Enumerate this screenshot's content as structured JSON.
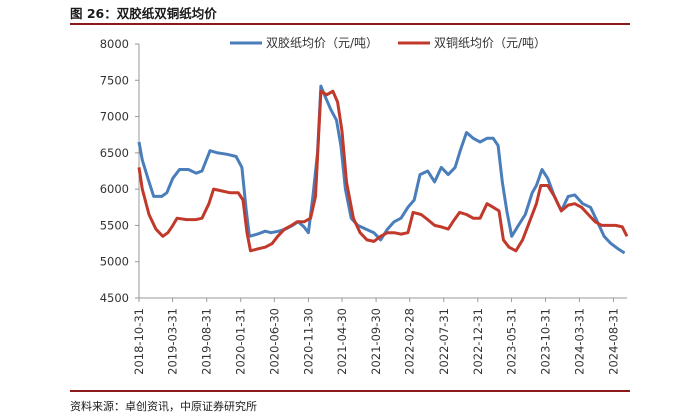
{
  "header": {
    "title": "图 26：双胶纸双铜纸均价"
  },
  "footer": {
    "source": "资料来源：卓创资讯，中原证券研究所"
  },
  "chart_data": {
    "type": "line",
    "title": "",
    "xlabel": "",
    "ylabel": "",
    "ylim": [
      4500,
      8000
    ],
    "yticks": [
      4500,
      5000,
      5500,
      6000,
      6500,
      7000,
      7500,
      8000
    ],
    "xlim": [
      "2018-10-31",
      "2024-10-31"
    ],
    "xticks": [
      "2018-10-31",
      "2019-03-31",
      "2019-08-31",
      "2020-01-31",
      "2020-06-30",
      "2020-11-30",
      "2021-04-30",
      "2021-09-30",
      "2022-02-28",
      "2022-07-31",
      "2022-12-31",
      "2023-05-31",
      "2023-10-31",
      "2024-03-31",
      "2024-08-31"
    ],
    "grid": false,
    "legend": "top",
    "series": [
      {
        "name": "双胶纸均价（元/吨）",
        "color": "#4a7ebb",
        "points": [
          [
            "2018-10-31",
            6650
          ],
          [
            "2018-11-15",
            6400
          ],
          [
            "2018-12-10",
            6150
          ],
          [
            "2019-01-05",
            5900
          ],
          [
            "2019-02-10",
            5900
          ],
          [
            "2019-03-05",
            5950
          ],
          [
            "2019-04-01",
            6150
          ],
          [
            "2019-05-01",
            6270
          ],
          [
            "2019-06-10",
            6270
          ],
          [
            "2019-07-15",
            6220
          ],
          [
            "2019-08-10",
            6250
          ],
          [
            "2019-09-15",
            6530
          ],
          [
            "2019-10-20",
            6500
          ],
          [
            "2019-12-01",
            6480
          ],
          [
            "2020-01-10",
            6450
          ],
          [
            "2020-02-05",
            6300
          ],
          [
            "2020-02-25",
            5700
          ],
          [
            "2020-03-10",
            5350
          ],
          [
            "2020-04-15",
            5380
          ],
          [
            "2020-05-20",
            5420
          ],
          [
            "2020-06-15",
            5400
          ],
          [
            "2020-07-20",
            5420
          ],
          [
            "2020-08-20",
            5450
          ],
          [
            "2020-09-20",
            5500
          ],
          [
            "2020-10-15",
            5550
          ],
          [
            "2020-11-10",
            5480
          ],
          [
            "2020-11-30",
            5400
          ],
          [
            "2020-12-20",
            5900
          ],
          [
            "2021-01-10",
            6500
          ],
          [
            "2021-01-25",
            7420
          ],
          [
            "2021-02-10",
            7300
          ],
          [
            "2021-03-10",
            7100
          ],
          [
            "2021-04-05",
            6950
          ],
          [
            "2021-04-25",
            6600
          ],
          [
            "2021-05-15",
            6000
          ],
          [
            "2021-06-10",
            5600
          ],
          [
            "2021-07-10",
            5500
          ],
          [
            "2021-08-15",
            5450
          ],
          [
            "2021-09-20",
            5400
          ],
          [
            "2021-10-20",
            5300
          ],
          [
            "2021-11-20",
            5450
          ],
          [
            "2021-12-20",
            5550
          ],
          [
            "2022-01-20",
            5600
          ],
          [
            "2022-02-20",
            5750
          ],
          [
            "2022-03-20",
            5850
          ],
          [
            "2022-04-15",
            6200
          ],
          [
            "2022-05-20",
            6250
          ],
          [
            "2022-06-20",
            6100
          ],
          [
            "2022-07-20",
            6300
          ],
          [
            "2022-08-20",
            6200
          ],
          [
            "2022-09-20",
            6300
          ],
          [
            "2022-10-15",
            6550
          ],
          [
            "2022-11-10",
            6780
          ],
          [
            "2022-12-10",
            6700
          ],
          [
            "2023-01-10",
            6650
          ],
          [
            "2023-02-10",
            6700
          ],
          [
            "2023-03-10",
            6700
          ],
          [
            "2023-04-01",
            6600
          ],
          [
            "2023-04-20",
            6100
          ],
          [
            "2023-05-10",
            5700
          ],
          [
            "2023-06-01",
            5350
          ],
          [
            "2023-07-01",
            5500
          ],
          [
            "2023-08-01",
            5650
          ],
          [
            "2023-09-01",
            5950
          ],
          [
            "2023-09-20",
            6050
          ],
          [
            "2023-10-15",
            6270
          ],
          [
            "2023-11-10",
            6150
          ],
          [
            "2023-12-10",
            5900
          ],
          [
            "2024-01-10",
            5700
          ],
          [
            "2024-02-10",
            5900
          ],
          [
            "2024-03-10",
            5920
          ],
          [
            "2024-04-15",
            5800
          ],
          [
            "2024-05-20",
            5750
          ],
          [
            "2024-06-20",
            5550
          ],
          [
            "2024-07-20",
            5350
          ],
          [
            "2024-08-20",
            5250
          ],
          [
            "2024-09-20",
            5180
          ],
          [
            "2024-10-20",
            5120
          ]
        ]
      },
      {
        "name": "双铜纸均价（元/吨）",
        "color": "#c0392b",
        "points": [
          [
            "2018-10-31",
            6300
          ],
          [
            "2018-11-15",
            6000
          ],
          [
            "2018-12-15",
            5650
          ],
          [
            "2019-01-15",
            5450
          ],
          [
            "2019-02-15",
            5350
          ],
          [
            "2019-03-10",
            5400
          ],
          [
            "2019-04-01",
            5500
          ],
          [
            "2019-04-20",
            5600
          ],
          [
            "2019-06-01",
            5580
          ],
          [
            "2019-07-15",
            5580
          ],
          [
            "2019-08-10",
            5600
          ],
          [
            "2019-09-10",
            5800
          ],
          [
            "2019-10-01",
            6000
          ],
          [
            "2019-11-01",
            5980
          ],
          [
            "2019-12-15",
            5950
          ],
          [
            "2020-01-20",
            5950
          ],
          [
            "2020-02-10",
            5850
          ],
          [
            "2020-02-28",
            5400
          ],
          [
            "2020-03-15",
            5150
          ],
          [
            "2020-04-20",
            5180
          ],
          [
            "2020-05-20",
            5200
          ],
          [
            "2020-06-20",
            5250
          ],
          [
            "2020-07-15",
            5350
          ],
          [
            "2020-08-15",
            5450
          ],
          [
            "2020-09-15",
            5500
          ],
          [
            "2020-10-10",
            5550
          ],
          [
            "2020-11-10",
            5550
          ],
          [
            "2020-12-10",
            5600
          ],
          [
            "2021-01-01",
            5900
          ],
          [
            "2021-01-25",
            7350
          ],
          [
            "2021-02-20",
            7300
          ],
          [
            "2021-03-20",
            7350
          ],
          [
            "2021-04-10",
            7200
          ],
          [
            "2021-04-30",
            6800
          ],
          [
            "2021-05-20",
            6100
          ],
          [
            "2021-06-20",
            5600
          ],
          [
            "2021-07-20",
            5400
          ],
          [
            "2021-08-20",
            5300
          ],
          [
            "2021-09-20",
            5280
          ],
          [
            "2021-10-20",
            5350
          ],
          [
            "2021-11-20",
            5400
          ],
          [
            "2021-12-20",
            5400
          ],
          [
            "2022-01-20",
            5380
          ],
          [
            "2022-02-20",
            5400
          ],
          [
            "2022-03-15",
            5680
          ],
          [
            "2022-04-20",
            5650
          ],
          [
            "2022-05-20",
            5580
          ],
          [
            "2022-06-20",
            5500
          ],
          [
            "2022-07-20",
            5480
          ],
          [
            "2022-08-20",
            5450
          ],
          [
            "2022-09-10",
            5550
          ],
          [
            "2022-10-10",
            5680
          ],
          [
            "2022-11-10",
            5650
          ],
          [
            "2022-12-10",
            5600
          ],
          [
            "2023-01-10",
            5600
          ],
          [
            "2023-02-10",
            5800
          ],
          [
            "2023-03-10",
            5750
          ],
          [
            "2023-04-05",
            5700
          ],
          [
            "2023-04-25",
            5300
          ],
          [
            "2023-05-20",
            5200
          ],
          [
            "2023-06-20",
            5150
          ],
          [
            "2023-07-20",
            5300
          ],
          [
            "2023-08-20",
            5550
          ],
          [
            "2023-09-20",
            5800
          ],
          [
            "2023-10-10",
            6050
          ],
          [
            "2023-11-10",
            6050
          ],
          [
            "2023-12-10",
            5900
          ],
          [
            "2024-01-10",
            5700
          ],
          [
            "2024-02-10",
            5780
          ],
          [
            "2024-03-10",
            5800
          ],
          [
            "2024-04-10",
            5750
          ],
          [
            "2024-05-10",
            5650
          ],
          [
            "2024-06-10",
            5550
          ],
          [
            "2024-07-10",
            5500
          ],
          [
            "2024-08-10",
            5500
          ],
          [
            "2024-09-10",
            5500
          ],
          [
            "2024-10-10",
            5480
          ],
          [
            "2024-10-31",
            5350
          ]
        ]
      }
    ]
  }
}
